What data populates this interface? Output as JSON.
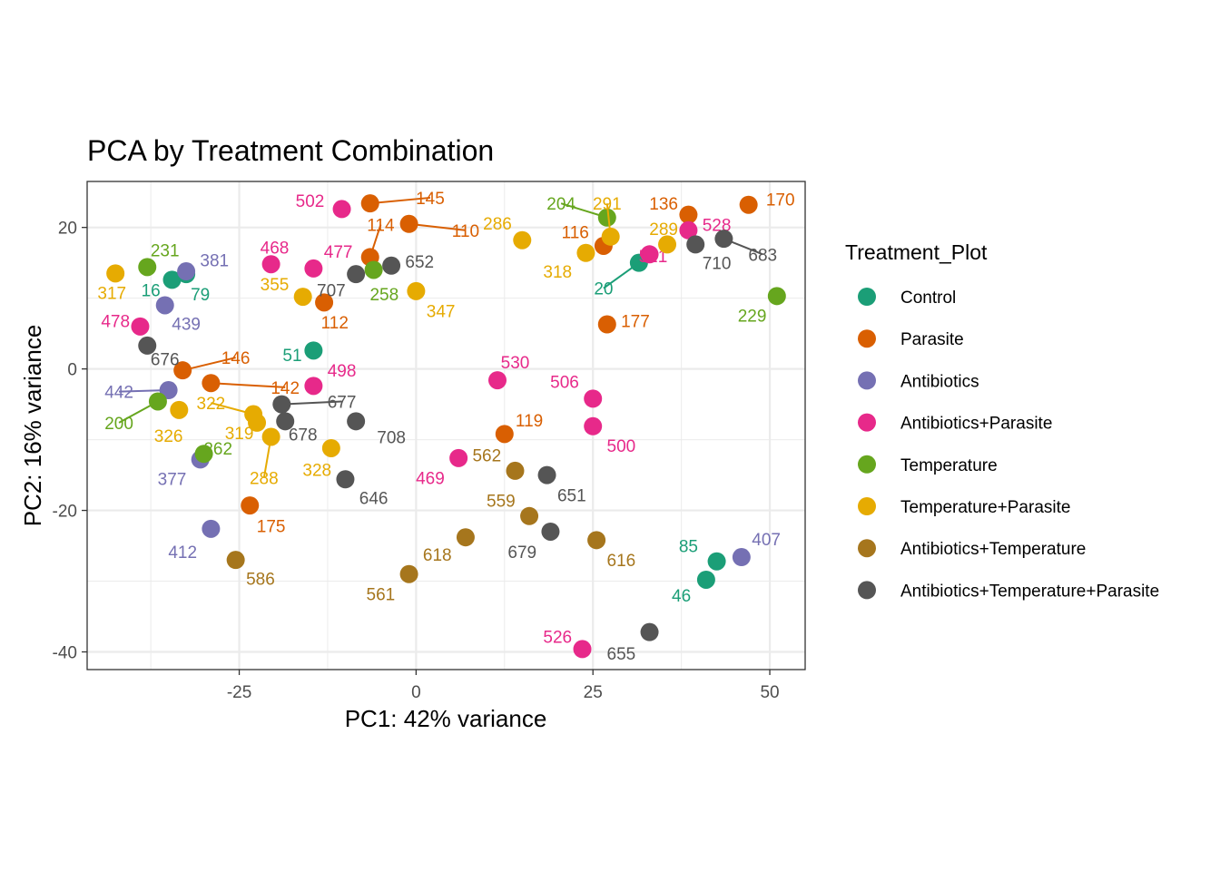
{
  "chart_data": {
    "type": "scatter",
    "title": "PCA by Treatment Combination",
    "xlabel": "PC1: 42% variance",
    "ylabel": "PC2: 16% variance",
    "xlim": [
      -46.5,
      55
    ],
    "ylim": [
      -42.5,
      26.5
    ],
    "x_ticks": [
      -25,
      0,
      25,
      50
    ],
    "y_ticks": [
      20,
      0,
      -20,
      -40
    ],
    "grid": true,
    "legend": {
      "title": "Treatment_Plot",
      "placement": "right"
    },
    "series": [
      {
        "name": "Control",
        "color": "#1B9E77",
        "points": [
          {
            "x": -34.5,
            "y": 12.6,
            "label": "16",
            "lx": -37.5,
            "ly": 11.2
          },
          {
            "x": -32.5,
            "y": 13.4,
            "label": "79",
            "lx": -30.5,
            "ly": 10.6
          },
          {
            "x": -14.5,
            "y": 2.6,
            "label": "51",
            "lx": -17.5,
            "ly": 2.0
          },
          {
            "x": 31.5,
            "y": 15.0,
            "label": "20",
            "lx": 26.5,
            "ly": 11.4,
            "leader": true
          },
          {
            "x": 42.5,
            "y": -27.2,
            "label": "85",
            "lx": 38.5,
            "ly": -25.0
          },
          {
            "x": 41.0,
            "y": -29.8,
            "label": "46",
            "lx": 37.5,
            "ly": -32.0
          }
        ]
      },
      {
        "name": "Parasite",
        "color": "#D95F02",
        "points": [
          {
            "x": -6.5,
            "y": 23.4,
            "label": "145",
            "lx": 2.0,
            "ly": 24.2,
            "leader": true
          },
          {
            "x": -1.0,
            "y": 20.5,
            "label": "110",
            "lx": 7.0,
            "ly": 19.6,
            "leader": true
          },
          {
            "x": -6.5,
            "y": 15.8,
            "label": "114",
            "lx": -5.0,
            "ly": 20.4,
            "leader": true
          },
          {
            "x": -13.0,
            "y": 9.4,
            "label": "112",
            "lx": -11.5,
            "ly": 6.6
          },
          {
            "x": -33.0,
            "y": -0.2,
            "label": "146",
            "lx": -25.5,
            "ly": 1.6,
            "leader": true
          },
          {
            "x": -29.0,
            "y": -2.0,
            "label": "142",
            "lx": -18.5,
            "ly": -2.6,
            "leader": true
          },
          {
            "x": -23.5,
            "y": -19.3,
            "label": "175",
            "lx": -20.5,
            "ly": -22.2
          },
          {
            "x": 12.5,
            "y": -9.2,
            "label": "119",
            "lx": 16.0,
            "ly": -7.2
          },
          {
            "x": 26.5,
            "y": 17.4,
            "label": "116",
            "lx": 22.5,
            "ly": 19.4
          },
          {
            "x": 38.5,
            "y": 21.8,
            "label": "136",
            "lx": 35.0,
            "ly": 23.4
          },
          {
            "x": 47.0,
            "y": 23.2,
            "label": "170",
            "lx": 51.5,
            "ly": 24.0
          },
          {
            "x": 27.0,
            "y": 6.3,
            "label": "177",
            "lx": 31.0,
            "ly": 6.8
          }
        ]
      },
      {
        "name": "Antibiotics",
        "color": "#7570B3",
        "points": [
          {
            "x": -32.5,
            "y": 13.8,
            "label": "381",
            "lx": -28.5,
            "ly": 15.4
          },
          {
            "x": -35.5,
            "y": 9.0,
            "label": "439",
            "lx": -32.5,
            "ly": 6.4
          },
          {
            "x": -35.0,
            "y": -3.0,
            "label": "442",
            "lx": -42.0,
            "ly": -3.2,
            "leader": true
          },
          {
            "x": -30.5,
            "y": -12.8,
            "label": "377",
            "lx": -34.5,
            "ly": -15.5
          },
          {
            "x": -29.0,
            "y": -22.6,
            "label": "412",
            "lx": -33.0,
            "ly": -25.8
          },
          {
            "x": 46.0,
            "y": -26.6,
            "label": "407",
            "lx": 49.5,
            "ly": -24.0
          }
        ]
      },
      {
        "name": "Antibiotics+Parasite",
        "color": "#E7298A",
        "points": [
          {
            "x": -10.5,
            "y": 22.6,
            "label": "502",
            "lx": -15.0,
            "ly": 23.8
          },
          {
            "x": -20.5,
            "y": 14.8,
            "label": "468",
            "lx": -20.0,
            "ly": 17.2
          },
          {
            "x": -14.5,
            "y": 14.2,
            "label": "477",
            "lx": -11.0,
            "ly": 16.6
          },
          {
            "x": -39.0,
            "y": 6.0,
            "label": "478",
            "lx": -42.5,
            "ly": 6.8
          },
          {
            "x": -14.5,
            "y": -2.4,
            "label": "498",
            "lx": -10.5,
            "ly": -0.2
          },
          {
            "x": 11.5,
            "y": -1.6,
            "label": "530",
            "lx": 14.0,
            "ly": 1.0
          },
          {
            "x": 25.0,
            "y": -4.2,
            "label": "506",
            "lx": 21.0,
            "ly": -1.8
          },
          {
            "x": 25.0,
            "y": -8.1,
            "label": "500",
            "lx": 29.0,
            "ly": -10.8
          },
          {
            "x": 6.0,
            "y": -12.6,
            "label": "469",
            "lx": 2.0,
            "ly": -15.4
          },
          {
            "x": 23.5,
            "y": -39.6,
            "label": "526",
            "lx": 20.0,
            "ly": -37.8
          },
          {
            "x": 33.0,
            "y": 16.2,
            "label": "521",
            "lx": 33.5,
            "ly": 16.0
          },
          {
            "x": 38.5,
            "y": 19.6,
            "label": "528",
            "lx": 42.5,
            "ly": 20.4
          }
        ]
      },
      {
        "name": "Temperature",
        "color": "#66A61E",
        "points": [
          {
            "x": -38.0,
            "y": 14.4,
            "label": "231",
            "lx": -35.5,
            "ly": 16.8
          },
          {
            "x": -6.0,
            "y": 14.0,
            "label": "258",
            "lx": -4.5,
            "ly": 10.6
          },
          {
            "x": -36.5,
            "y": -4.6,
            "label": "200",
            "lx": -42.0,
            "ly": -7.6,
            "leader": true
          },
          {
            "x": -30.0,
            "y": -12.0,
            "label": "262",
            "lx": -28.0,
            "ly": -11.2
          },
          {
            "x": 27.0,
            "y": 21.4,
            "label": "204",
            "lx": 20.5,
            "ly": 23.4,
            "leader": true
          },
          {
            "x": 51.0,
            "y": 10.3,
            "label": "229",
            "lx": 47.5,
            "ly": 7.6
          }
        ]
      },
      {
        "name": "Temperature+Parasite",
        "color": "#E6AB02",
        "points": [
          {
            "x": -42.5,
            "y": 13.5,
            "label": "317",
            "lx": -43.0,
            "ly": 10.8
          },
          {
            "x": -16.0,
            "y": 10.2,
            "label": "355",
            "lx": -20.0,
            "ly": 12.0
          },
          {
            "x": 0.0,
            "y": 11.0,
            "label": "347",
            "lx": 3.5,
            "ly": 8.2
          },
          {
            "x": -33.5,
            "y": -5.8,
            "label": "326",
            "lx": -35.0,
            "ly": -9.4
          },
          {
            "x": -23.0,
            "y": -6.4,
            "label": "322",
            "lx": -29.0,
            "ly": -4.8,
            "leader": true
          },
          {
            "x": -22.5,
            "y": -7.6,
            "label": "319",
            "lx": -25.0,
            "ly": -9.0
          },
          {
            "x": -20.5,
            "y": -9.6,
            "label": "288",
            "lx": -21.5,
            "ly": -15.4,
            "leader": true
          },
          {
            "x": -12.0,
            "y": -11.2,
            "label": "328",
            "lx": -14.0,
            "ly": -14.2
          },
          {
            "x": 15.0,
            "y": 18.2,
            "label": "286",
            "lx": 11.5,
            "ly": 20.6
          },
          {
            "x": 24.0,
            "y": 16.4,
            "label": "318",
            "lx": 20.0,
            "ly": 13.8
          },
          {
            "x": 27.5,
            "y": 18.7,
            "label": "291",
            "lx": 27.0,
            "ly": 23.4,
            "leader": true
          },
          {
            "x": 35.5,
            "y": 17.6,
            "label": "289",
            "lx": 35.0,
            "ly": 19.8
          }
        ]
      },
      {
        "name": "Antibiotics+Temperature",
        "color": "#A6761D",
        "points": [
          {
            "x": 14.0,
            "y": -14.4,
            "label": "562",
            "lx": 10.0,
            "ly": -12.2
          },
          {
            "x": 16.0,
            "y": -20.8,
            "label": "559",
            "lx": 12.0,
            "ly": -18.6
          },
          {
            "x": 7.0,
            "y": -23.8,
            "label": "618",
            "lx": 3.0,
            "ly": -26.2
          },
          {
            "x": -1.0,
            "y": -29.0,
            "label": "561",
            "lx": -5.0,
            "ly": -31.8
          },
          {
            "x": 25.5,
            "y": -24.2,
            "label": "616",
            "lx": 29.0,
            "ly": -27.0
          },
          {
            "x": -25.5,
            "y": -27.0,
            "label": "586",
            "lx": -22.0,
            "ly": -29.6
          }
        ]
      },
      {
        "name": "Antibiotics+Temperature+Parasite",
        "color": "#555555",
        "points": [
          {
            "x": -8.5,
            "y": 13.4,
            "label": "707",
            "lx": -12.0,
            "ly": 11.2
          },
          {
            "x": -3.5,
            "y": 14.6,
            "label": "652",
            "lx": 0.5,
            "ly": 15.2
          },
          {
            "x": -38.0,
            "y": 3.3,
            "label": "676",
            "lx": -35.5,
            "ly": 1.4
          },
          {
            "x": -19.0,
            "y": -5.0,
            "label": "677",
            "lx": -10.5,
            "ly": -4.6,
            "leader": true
          },
          {
            "x": -18.5,
            "y": -7.4,
            "label": "678",
            "lx": -16.0,
            "ly": -9.2
          },
          {
            "x": -8.5,
            "y": -7.4,
            "label": "708",
            "lx": -3.5,
            "ly": -9.6
          },
          {
            "x": -10.0,
            "y": -15.6,
            "label": "646",
            "lx": -6.0,
            "ly": -18.2
          },
          {
            "x": 18.5,
            "y": -15.0,
            "label": "651",
            "lx": 22.0,
            "ly": -17.8
          },
          {
            "x": 19.0,
            "y": -23.0,
            "label": "679",
            "lx": 15.0,
            "ly": -25.8
          },
          {
            "x": 33.0,
            "y": -37.2,
            "label": "655",
            "lx": 29.0,
            "ly": -40.2
          },
          {
            "x": 39.5,
            "y": 17.6,
            "label": "710",
            "lx": 42.5,
            "ly": 15.0
          },
          {
            "x": 43.5,
            "y": 18.4,
            "label": "683",
            "lx": 49.0,
            "ly": 16.2,
            "leader": true
          }
        ]
      }
    ]
  }
}
